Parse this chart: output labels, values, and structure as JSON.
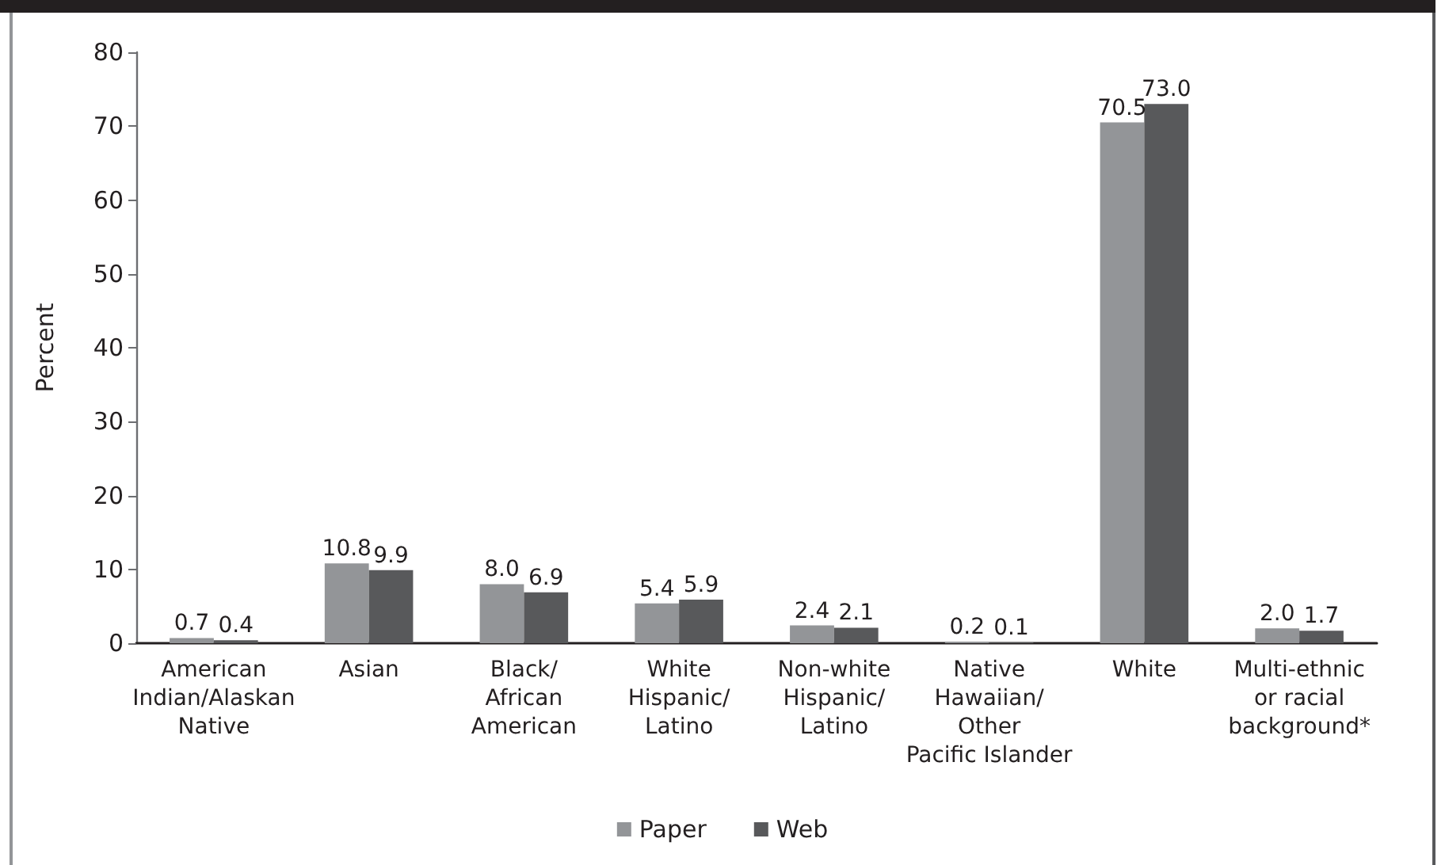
{
  "chart_data": {
    "type": "bar",
    "ylabel": "Percent",
    "categories": [
      "American\nIndian/Alaskan\nNative",
      "Asian",
      "Black/\nAfrican\nAmerican",
      "White\nHispanic/\nLatino",
      "Non-white\nHispanic/\nLatino",
      "Native\nHawaiian/\nOther\nPacific Islander",
      "White",
      "Multi-ethnic\nor racial\nbackground*"
    ],
    "series": [
      {
        "name": "Paper",
        "color": "#939598",
        "values": [
          0.7,
          10.8,
          8.0,
          5.4,
          2.4,
          0.2,
          70.5,
          2.0
        ],
        "value_labels": [
          "0.7",
          "10.8",
          "8.0",
          "5.4",
          "2.4",
          "0.2",
          "70.5",
          "2.0"
        ]
      },
      {
        "name": "Web",
        "color": "#58595b",
        "values": [
          0.4,
          9.9,
          6.9,
          5.9,
          2.1,
          0.1,
          73.0,
          1.7
        ],
        "value_labels": [
          "0.4",
          "9.9",
          "6.9",
          "5.9",
          "2.1",
          "0.1",
          "73.0",
          "1.7"
        ]
      }
    ],
    "ylim": [
      0,
      80
    ],
    "yticks": [
      0,
      10,
      20,
      30,
      40,
      50,
      60,
      70,
      80
    ],
    "legend": "bottom"
  }
}
